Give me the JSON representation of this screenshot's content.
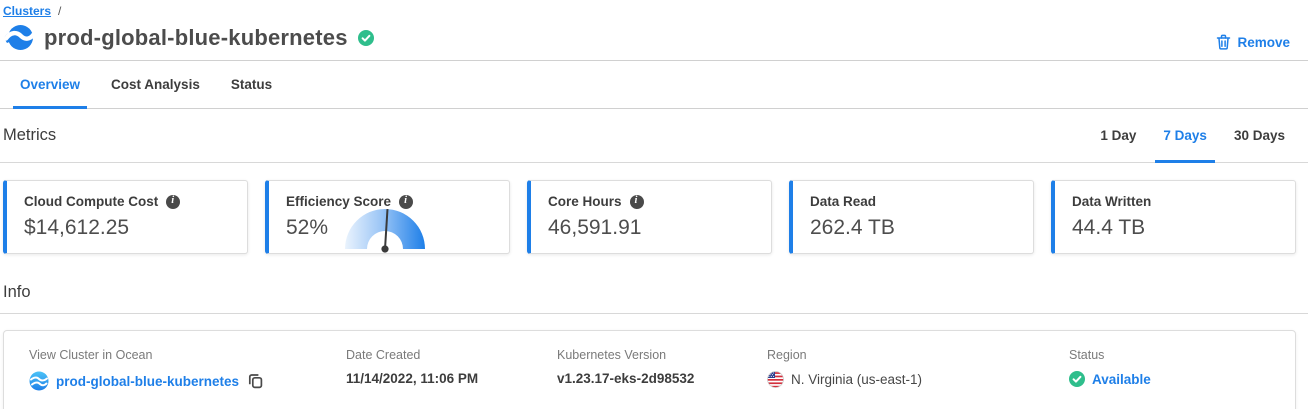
{
  "breadcrumb": {
    "root": "Clusters",
    "separator": "/"
  },
  "header": {
    "title": "prod-global-blue-kubernetes",
    "remove_label": "Remove",
    "title_status_icon": "green-check"
  },
  "tabs": [
    {
      "label": "Overview",
      "active": true
    },
    {
      "label": "Cost Analysis",
      "active": false
    },
    {
      "label": "Status",
      "active": false
    }
  ],
  "metrics": {
    "heading": "Metrics",
    "time_ranges": [
      {
        "label": "1 Day",
        "active": false
      },
      {
        "label": "7 Days",
        "active": true
      },
      {
        "label": "30 Days",
        "active": false
      }
    ],
    "cards": [
      {
        "label": "Cloud Compute Cost",
        "value": "$14,612.25",
        "has_info_icon": true
      },
      {
        "label": "Efficiency Score",
        "value": "52%",
        "has_info_icon": true,
        "gauge_percent": 52
      },
      {
        "label": "Core Hours",
        "value": "46,591.91",
        "has_info_icon": true
      },
      {
        "label": "Data Read",
        "value": "262.4 TB",
        "has_info_icon": false
      },
      {
        "label": "Data Written",
        "value": "44.4 TB",
        "has_info_icon": false
      }
    ]
  },
  "info": {
    "heading": "Info",
    "fields": [
      {
        "label": "View Cluster in Ocean",
        "value": "prod-global-blue-kubernetes",
        "icons": [
          "ocean-logo",
          "copy"
        ]
      },
      {
        "label": "Date Created",
        "value": "11/14/2022, 11:06 PM"
      },
      {
        "label": "Kubernetes Version",
        "value": "v1.23.17-eks-2d98532"
      },
      {
        "label": "Region",
        "value": "N. Virginia (us-east-1)",
        "icons": [
          "us-flag"
        ]
      },
      {
        "label": "Status",
        "value": "Available",
        "icons": [
          "green-check"
        ]
      }
    ]
  },
  "colors": {
    "accent": "#1e7fe8",
    "green": "#2fbe8c",
    "info_icon_bg": "#4a4a4a"
  }
}
